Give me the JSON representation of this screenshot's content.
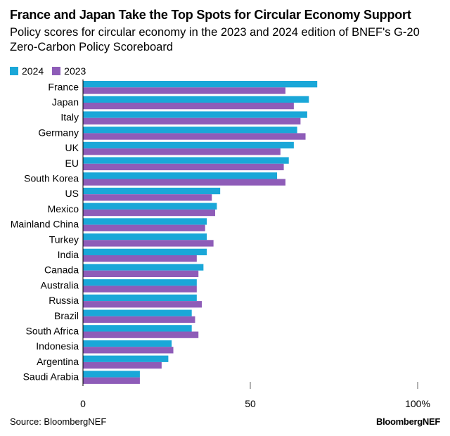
{
  "title": "France and Japan Take the Top Spots for Circular Economy Support",
  "subtitle": "Policy scores for circular economy in the 2023 and 2024 edition of BNEF's G-20 Zero-Carbon Policy Scoreboard",
  "source": "Source: BloombergNEF",
  "brand": "BloombergNEF",
  "colors": {
    "s2024": "#1aa7d8",
    "s2023": "#8e5cb8",
    "axis": "#000000",
    "tick": "#666666"
  },
  "chart_data": {
    "type": "bar",
    "orientation": "horizontal",
    "categories": [
      "France",
      "Japan",
      "Italy",
      "Germany",
      "UK",
      "EU",
      "South Korea",
      "US",
      "Mexico",
      "Mainland China",
      "Turkey",
      "India",
      "Canada",
      "Australia",
      "Russia",
      "Brazil",
      "South Africa",
      "Indonesia",
      "Argentina",
      "Saudi Arabia"
    ],
    "series": [
      {
        "name": "2024",
        "values": [
          70,
          67.5,
          67,
          64,
          63,
          61.5,
          58,
          41,
          40,
          37,
          37,
          37,
          36,
          34,
          34,
          32.5,
          32.5,
          26.5,
          25.5,
          17
        ]
      },
      {
        "name": "2023",
        "values": [
          60.5,
          63,
          65,
          66.5,
          59,
          60,
          60.5,
          38.5,
          39.5,
          36.5,
          39,
          34,
          34.5,
          34,
          35.5,
          33.5,
          34.5,
          27,
          23.5,
          17
        ]
      }
    ],
    "xlim": [
      0,
      100
    ],
    "xticks": [
      0,
      50,
      100
    ],
    "xtick_labels": [
      "0",
      "50",
      "100%"
    ],
    "legend": "top-left"
  }
}
